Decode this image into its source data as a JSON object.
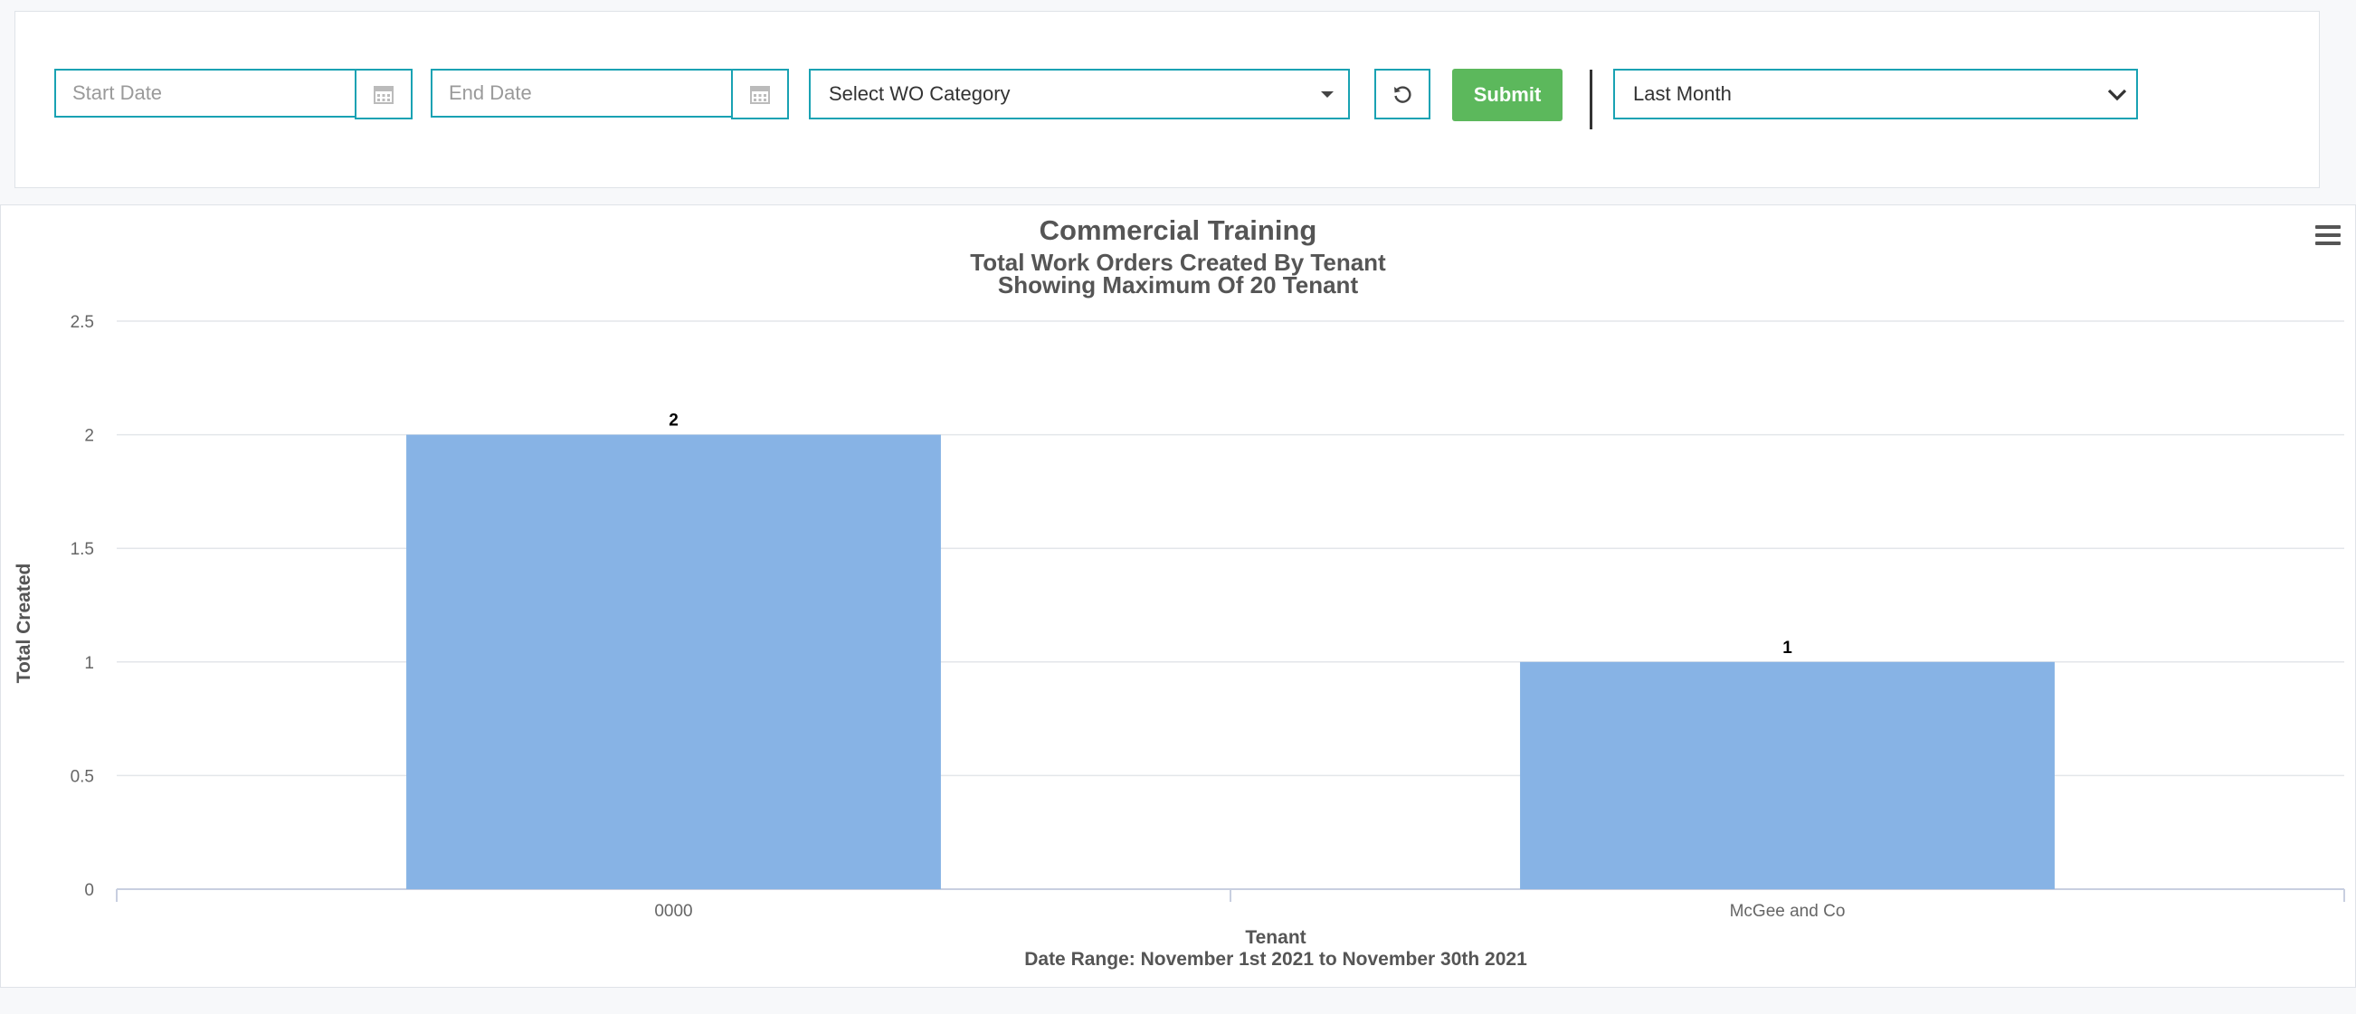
{
  "filters": {
    "start_date_placeholder": "Start Date",
    "end_date_placeholder": "End Date",
    "category_label": "Select WO Category",
    "submit_label": "Submit",
    "period_label": "Last Month"
  },
  "colors": {
    "accent": "#19a2b3",
    "submit": "#5cb85c",
    "bar": "#87b3e5"
  },
  "icons": {
    "calendar": "calendar-icon",
    "reset": "reset-icon",
    "menu": "hamburger-menu-icon",
    "dropdown": "chevron-down-icon"
  },
  "chart_data": {
    "type": "bar",
    "title": "Commercial Training",
    "subtitle_line1": "Total Work Orders Created By Tenant",
    "subtitle_line2": "Showing Maximum Of 20 Tenant",
    "categories": [
      "0000",
      "McGee and Co"
    ],
    "values": [
      2,
      1
    ],
    "xlabel": "Tenant",
    "ylabel": "Total Created",
    "caption": "Date Range: November 1st 2021 to November 30th 2021",
    "ylim": [
      0,
      2.5
    ],
    "yticks": [
      0,
      0.5,
      1,
      1.5,
      2,
      2.5
    ],
    "grid": true,
    "data_labels": true
  }
}
